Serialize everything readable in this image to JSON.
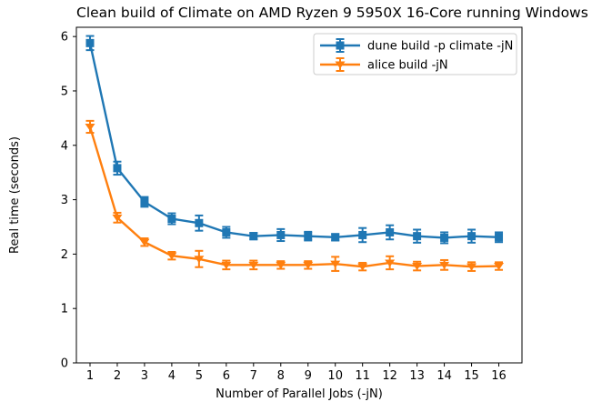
{
  "figure": {
    "background": "#ffffff"
  },
  "chart_data": {
    "type": "line",
    "title": "Clean build of Climate on AMD Ryzen 9 5950X 16-Core running Windows 11",
    "xlabel": "Number of Parallel Jobs (-jN)",
    "ylabel": "Real time (seconds)",
    "x": [
      1,
      2,
      3,
      4,
      5,
      6,
      7,
      8,
      9,
      10,
      11,
      12,
      13,
      14,
      15,
      16
    ],
    "xticks": [
      1,
      2,
      3,
      4,
      5,
      6,
      7,
      8,
      9,
      10,
      11,
      12,
      13,
      14,
      15,
      16
    ],
    "yticks": [
      0,
      1,
      2,
      3,
      4,
      5,
      6
    ],
    "xlim": [
      0.5,
      16.85
    ],
    "ylim": [
      0,
      6.17
    ],
    "grid": false,
    "legend": {
      "position": "upper right",
      "border_color": "#cccccc",
      "background": "#ffffff"
    },
    "series": [
      {
        "name": "dune build -p climate -jN",
        "color": "#1f77b4",
        "marker": "square",
        "values": [
          5.88,
          3.58,
          2.96,
          2.65,
          2.57,
          2.4,
          2.33,
          2.35,
          2.33,
          2.31,
          2.35,
          2.4,
          2.33,
          2.3,
          2.33,
          2.31
        ],
        "errors": [
          0.13,
          0.12,
          0.09,
          0.1,
          0.14,
          0.1,
          0.06,
          0.11,
          0.08,
          0.06,
          0.13,
          0.13,
          0.12,
          0.1,
          0.12,
          0.09
        ]
      },
      {
        "name": "alice build -jN",
        "color": "#ff7f0e",
        "marker": "triangle-down",
        "values": [
          4.34,
          2.67,
          2.22,
          1.97,
          1.91,
          1.8,
          1.8,
          1.8,
          1.8,
          1.82,
          1.77,
          1.84,
          1.78,
          1.8,
          1.77,
          1.78
        ],
        "errors": [
          0.11,
          0.09,
          0.07,
          0.07,
          0.15,
          0.08,
          0.08,
          0.07,
          0.07,
          0.13,
          0.07,
          0.12,
          0.08,
          0.09,
          0.08,
          0.07
        ]
      }
    ]
  }
}
